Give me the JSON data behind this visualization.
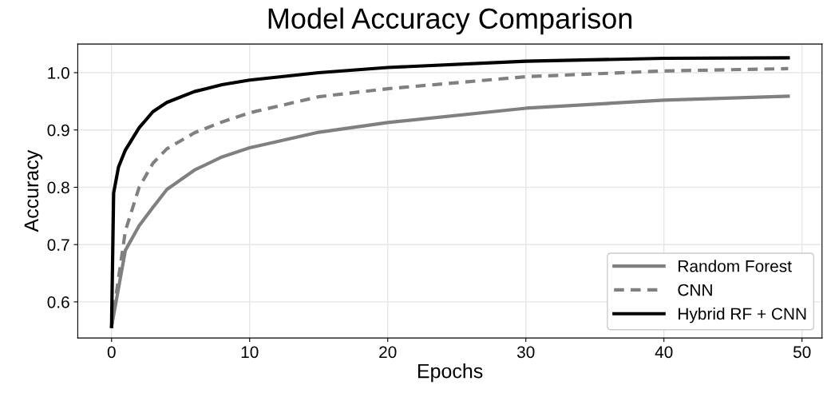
{
  "chart_data": {
    "type": "line",
    "title": "Model Accuracy Comparison",
    "xlabel": "Epochs",
    "ylabel": "Accuracy",
    "xlim": [
      -2.45,
      51.45
    ],
    "ylim": [
      0.537,
      1.05
    ],
    "xticks": [
      0,
      10,
      20,
      30,
      40,
      50
    ],
    "yticks": [
      0.6,
      0.7,
      0.8,
      0.9,
      {
        "value": 1.0,
        "label": "1.0"
      }
    ],
    "grid": true,
    "legend": "bottom right",
    "series": [
      {
        "name": "Random Forest",
        "color": "#808080",
        "line_style": "solid",
        "x": [
          0,
          1,
          2,
          3,
          4,
          6,
          8,
          10,
          15,
          20,
          30,
          40,
          49
        ],
        "values": [
          0.557,
          0.69,
          0.733,
          0.765,
          0.796,
          0.83,
          0.853,
          0.869,
          0.896,
          0.913,
          0.938,
          0.952,
          0.959
        ]
      },
      {
        "name": "CNN",
        "color": "#808080",
        "line_style": "dashed",
        "x": [
          0,
          1,
          2,
          3,
          4,
          6,
          8,
          10,
          15,
          20,
          30,
          40,
          49
        ],
        "values": [
          0.557,
          0.724,
          0.8,
          0.842,
          0.867,
          0.895,
          0.914,
          0.93,
          0.958,
          0.972,
          0.993,
          1.003,
          1.007
        ]
      },
      {
        "name": "Hybrid RF + CNN",
        "color": "#000000",
        "line_style": "solid",
        "x": [
          0,
          0.15,
          0.5,
          1,
          2,
          3,
          4,
          6,
          8,
          10,
          15,
          20,
          30,
          40,
          49
        ],
        "values": [
          0.557,
          0.79,
          0.835,
          0.865,
          0.904,
          0.932,
          0.948,
          0.967,
          0.979,
          0.987,
          1.0,
          1.009,
          1.02,
          1.025,
          1.026
        ]
      }
    ]
  }
}
